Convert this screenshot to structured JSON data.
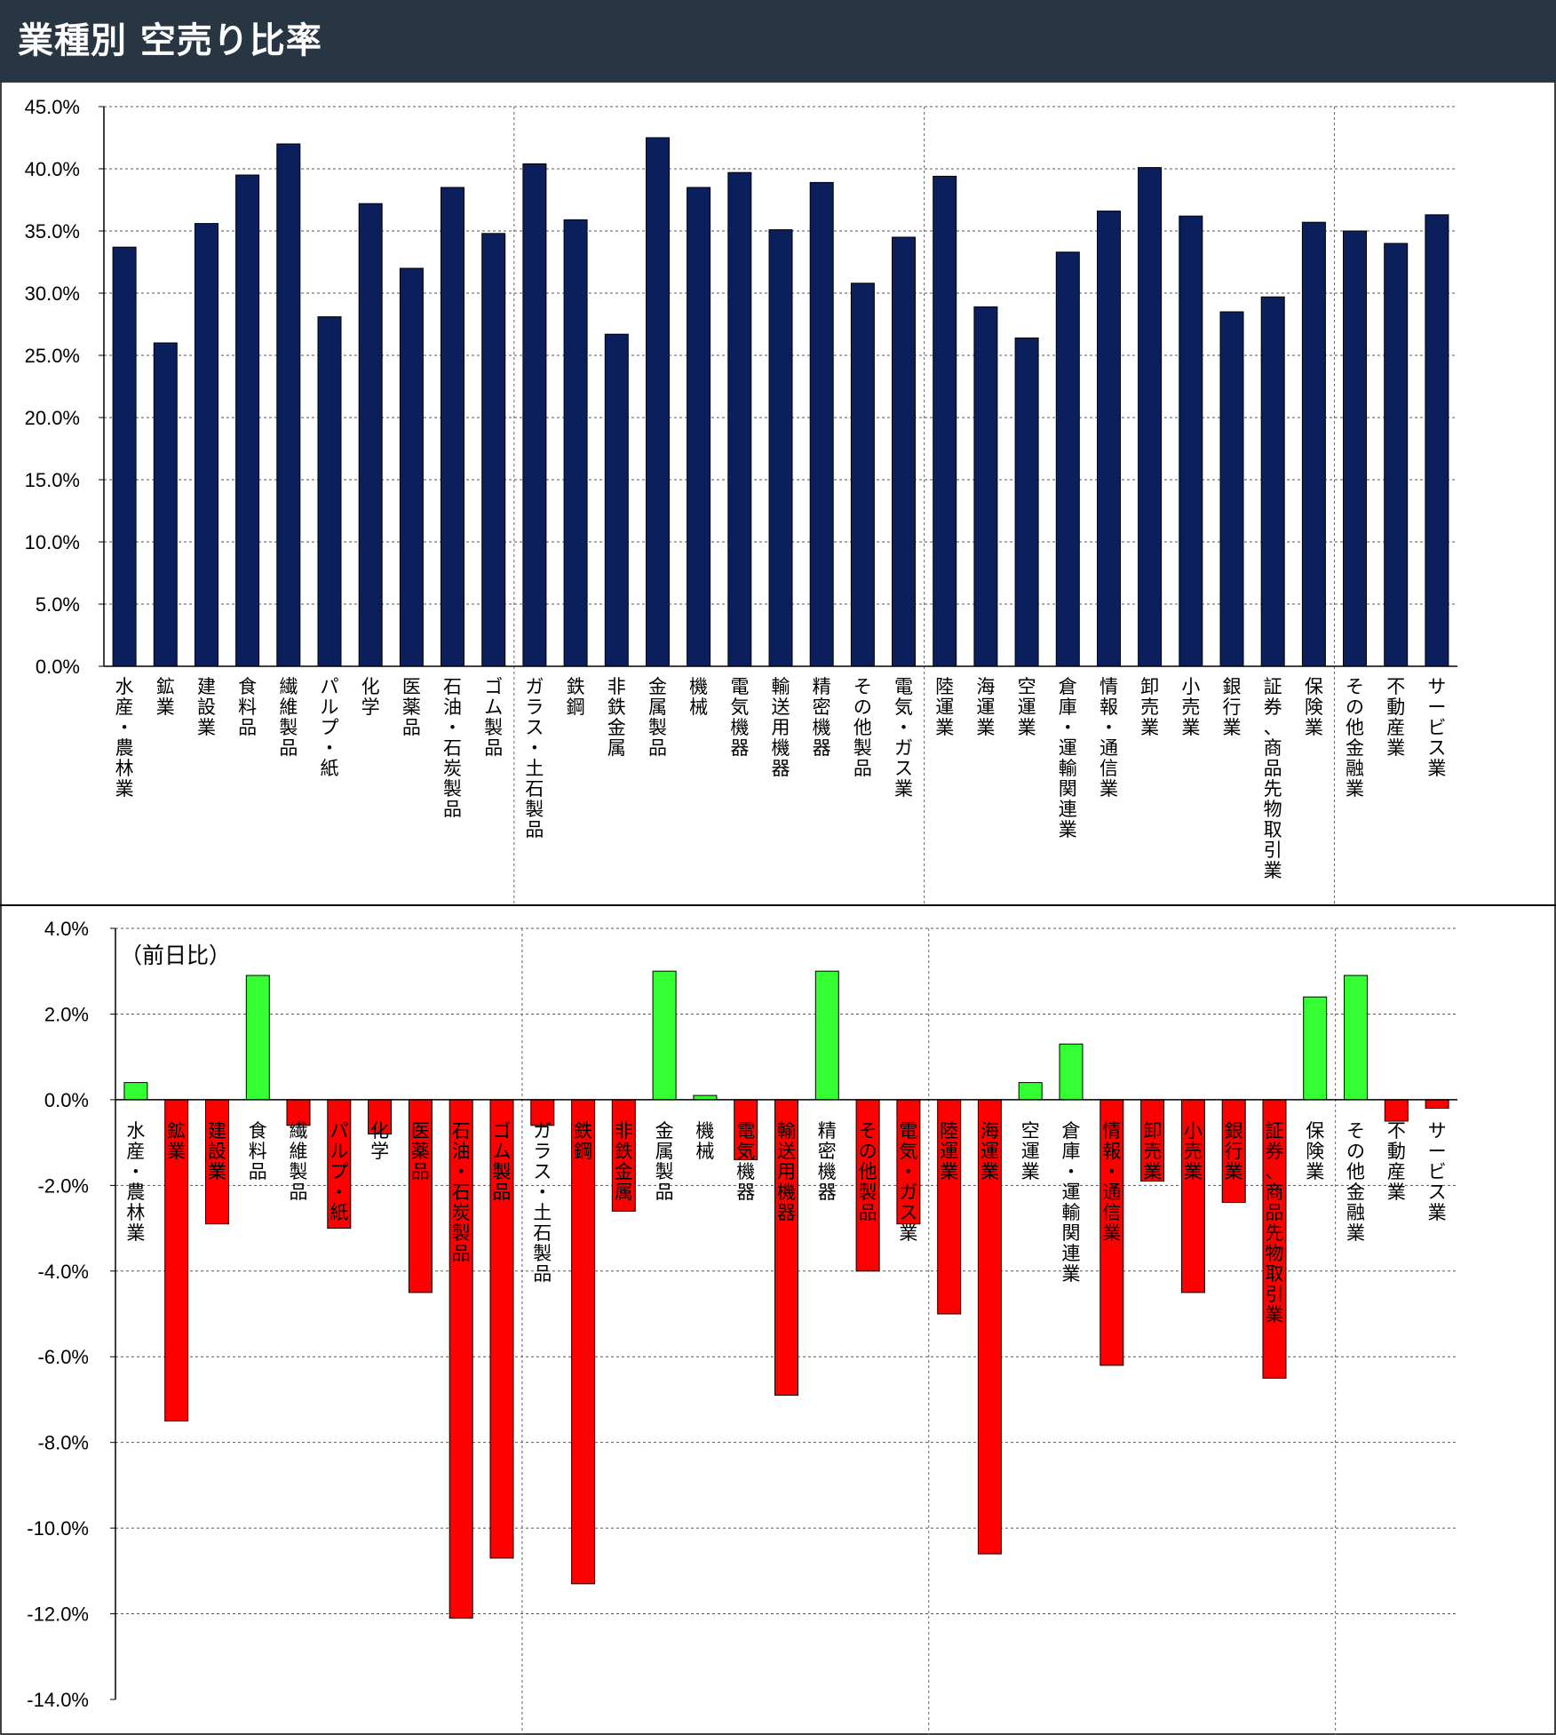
{
  "header": {
    "title": "業種別 空売り比率"
  },
  "colors": {
    "header_bg": "#283644",
    "bar_top": "#0a1f5c",
    "bar_positive": "#33ff33",
    "bar_negative": "#ff0000"
  },
  "chart_data": [
    {
      "type": "bar",
      "categories": [
        "水産・農林業",
        "鉱業",
        "建設業",
        "食料品",
        "繊維製品",
        "パルプ・紙",
        "化学",
        "医薬品",
        "石油・石炭製品",
        "ゴム製品",
        "ガラス・土石製品",
        "鉄鋼",
        "非鉄金属",
        "金属製品",
        "機械",
        "電気機器",
        "輸送用機器",
        "精密機器",
        "その他製品",
        "電気・ガス業",
        "陸運業",
        "海運業",
        "空運業",
        "倉庫・運輸関連業",
        "情報・通信業",
        "卸売業",
        "小売業",
        "銀行業",
        "証券、商品先物取引業",
        "保険業",
        "その他金融業",
        "不動産業",
        "サービス業"
      ],
      "values": [
        33.7,
        26.0,
        35.6,
        39.5,
        42.0,
        28.1,
        37.2,
        32.0,
        38.5,
        34.8,
        40.4,
        35.9,
        26.7,
        42.5,
        38.5,
        39.7,
        35.1,
        38.9,
        30.8,
        34.5,
        39.4,
        28.9,
        26.4,
        33.3,
        36.6,
        40.1,
        36.2,
        28.5,
        29.7,
        35.7,
        35.0,
        34.0,
        36.3
      ],
      "title": "",
      "xlabel": "",
      "ylabel": "",
      "ylim": [
        0,
        45
      ],
      "y_ticks": [
        "45.0%",
        "40.0%",
        "35.0%",
        "30.0%",
        "25.0%",
        "20.0%",
        "15.0%",
        "10.0%",
        "5.0%",
        "0.0%"
      ],
      "grid": true,
      "legend": "none"
    },
    {
      "type": "bar",
      "annotation": "（前日比）",
      "categories": [
        "水産・農林業",
        "鉱業",
        "建設業",
        "食料品",
        "繊維製品",
        "パルプ・紙",
        "化学",
        "医薬品",
        "石油・石炭製品",
        "ゴム製品",
        "ガラス・土石製品",
        "鉄鋼",
        "非鉄金属",
        "金属製品",
        "機械",
        "電気機器",
        "輸送用機器",
        "精密機器",
        "その他製品",
        "電気・ガス業",
        "陸運業",
        "海運業",
        "空運業",
        "倉庫・運輸関連業",
        "情報・通信業",
        "卸売業",
        "小売業",
        "銀行業",
        "証券、商品先物取引業",
        "保険業",
        "その他金融業",
        "不動産業",
        "サービス業"
      ],
      "values": [
        0.4,
        -7.5,
        -2.9,
        2.9,
        -0.6,
        -3.0,
        -0.8,
        -4.5,
        -12.1,
        -10.7,
        -0.6,
        -11.3,
        -2.6,
        3.0,
        0.1,
        -1.4,
        -6.9,
        3.0,
        -4.0,
        -2.9,
        -5.0,
        -10.6,
        0.4,
        1.3,
        -6.2,
        -1.9,
        -4.5,
        -2.4,
        -6.5,
        2.4,
        2.9,
        -0.5,
        -0.2
      ],
      "title": "",
      "xlabel": "",
      "ylabel": "",
      "ylim": [
        -14,
        4
      ],
      "y_ticks": [
        "4.0%",
        "2.0%",
        "0.0%",
        "-2.0%",
        "-4.0%",
        "-6.0%",
        "-8.0%",
        "-10.0%",
        "-12.0%",
        "-14.0%"
      ],
      "grid": true,
      "legend": "none"
    }
  ]
}
